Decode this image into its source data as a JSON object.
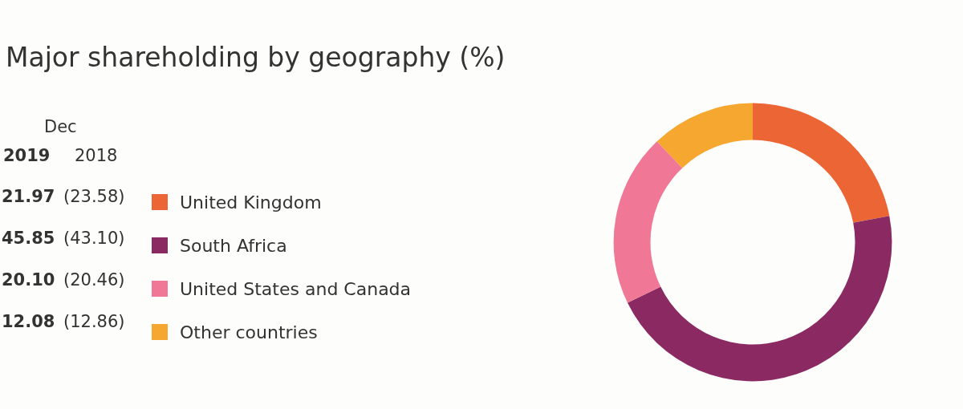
{
  "chart_data": {
    "type": "donut",
    "title": "Major shareholding by geography (%)",
    "categories": [
      "United Kingdom",
      "South Africa",
      "United States and Canada",
      "Other countries"
    ],
    "values": [
      21.97,
      45.85,
      20.1,
      12.08
    ],
    "value_labels": [
      "21.97",
      "45.85",
      "20.10",
      "12.08"
    ],
    "colors": [
      "#ec6535",
      "#8b2a62",
      "#f07896",
      "#f6a730"
    ],
    "legend": "left",
    "annotations": [
      "Dec",
      "2019",
      "2018",
      "(23.58)",
      "(43.10)",
      "(20.46)",
      "(12.86)"
    ]
  }
}
